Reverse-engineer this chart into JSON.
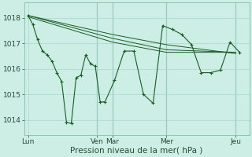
{
  "bg_color": "#cceee4",
  "grid_color": "#aad8cc",
  "line_color": "#1a5c28",
  "xlabel": "Pression niveau de la mer( hPa )",
  "xlabel_fontsize": 7.5,
  "yticks": [
    1014,
    1015,
    1016,
    1017,
    1018
  ],
  "ylim": [
    1013.4,
    1018.6
  ],
  "xtick_labels": [
    "Lun",
    "Ven",
    "Mar",
    "Mer",
    "Jeu"
  ],
  "xtick_pos": [
    0,
    3.6,
    4.4,
    7.2,
    10.8
  ],
  "xlim": [
    -0.2,
    11.5
  ],
  "tick_fontsize": 6.5,
  "series1": {
    "x": [
      0,
      0.25,
      0.5,
      0.75,
      1.0,
      1.25,
      1.5,
      1.75,
      2.0,
      2.25,
      2.5,
      2.75,
      3.0,
      3.25,
      3.5,
      3.75,
      4.0,
      4.5,
      5.0,
      5.5,
      6.0,
      6.5,
      7.0,
      7.5,
      8.0,
      8.5,
      9.0,
      9.5,
      10.0,
      10.5,
      11.0
    ],
    "y": [
      1018.1,
      1017.75,
      1017.15,
      1016.7,
      1016.55,
      1016.3,
      1015.85,
      1015.5,
      1013.9,
      1013.85,
      1015.65,
      1015.75,
      1016.55,
      1016.2,
      1016.1,
      1014.7,
      1014.7,
      1015.55,
      1016.7,
      1016.7,
      1015.0,
      1014.65,
      1017.7,
      1017.55,
      1017.35,
      1016.95,
      1015.85,
      1015.85,
      1015.95,
      1017.05,
      1016.65
    ]
  },
  "series2": {
    "x": [
      0,
      4.4,
      7.2,
      10.8
    ],
    "y": [
      1018.1,
      1017.35,
      1016.95,
      1016.6
    ]
  },
  "series3": {
    "x": [
      0,
      4.4,
      7.2,
      10.8
    ],
    "y": [
      1018.1,
      1017.2,
      1016.75,
      1016.65
    ]
  },
  "series4": {
    "x": [
      0,
      4.4,
      7.2,
      10.8
    ],
    "y": [
      1018.05,
      1017.05,
      1016.65,
      1016.65
    ]
  },
  "vlines": [
    3.6,
    4.4,
    7.2,
    10.8
  ]
}
